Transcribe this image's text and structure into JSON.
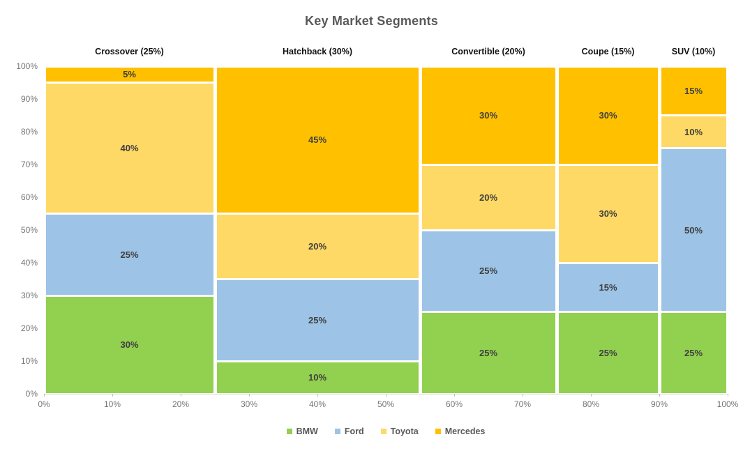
{
  "chart_data": {
    "type": "mosaic",
    "title": "Key Market Segments",
    "x_axis_unit": "%",
    "y_axis_unit": "%",
    "xlim": [
      0,
      100
    ],
    "ylim": [
      0,
      100
    ],
    "x_tick_labels": [
      "0%",
      "10%",
      "20%",
      "30%",
      "40%",
      "50%",
      "60%",
      "70%",
      "80%",
      "90%",
      "100%"
    ],
    "y_tick_labels": [
      "0%",
      "10%",
      "20%",
      "30%",
      "40%",
      "50%",
      "60%",
      "70%",
      "80%",
      "90%",
      "100%"
    ],
    "legend_position": "bottom",
    "stack_order_bottom_to_top": [
      "BMW",
      "Ford",
      "Toyota",
      "Mercedes"
    ],
    "series_colors": {
      "BMW": "#92D050",
      "Ford": "#9DC3E6",
      "Toyota": "#FFD966",
      "Mercedes": "#FFC000"
    },
    "categories": [
      {
        "label": "Crossover (25%)",
        "width_pct": 25,
        "values": {
          "BMW": 30,
          "Ford": 25,
          "Toyota": 40,
          "Mercedes": 5
        },
        "data_labels": {
          "BMW": "30%",
          "Ford": "25%",
          "Toyota": "40%",
          "Mercedes": "5%"
        }
      },
      {
        "label": "Hatchback (30%)",
        "width_pct": 30,
        "values": {
          "BMW": 10,
          "Ford": 25,
          "Toyota": 20,
          "Mercedes": 45
        },
        "data_labels": {
          "BMW": "10%",
          "Ford": "25%",
          "Toyota": "20%",
          "Mercedes": "45%"
        }
      },
      {
        "label": "Convertible (20%)",
        "width_pct": 20,
        "values": {
          "BMW": 25,
          "Ford": 25,
          "Toyota": 20,
          "Mercedes": 30
        },
        "data_labels": {
          "BMW": "25%",
          "Ford": "25%",
          "Toyota": "20%",
          "Mercedes": "30%"
        }
      },
      {
        "label": "Coupe (15%)",
        "width_pct": 15,
        "values": {
          "BMW": 25,
          "Ford": 15,
          "Toyota": 30,
          "Mercedes": 30
        },
        "data_labels": {
          "BMW": "25%",
          "Ford": "15%",
          "Toyota": "30%",
          "Mercedes": "30%"
        }
      },
      {
        "label": "SUV (10%)",
        "width_pct": 10,
        "values": {
          "BMW": 25,
          "Ford": 50,
          "Toyota": 10,
          "Mercedes": 15
        },
        "data_labels": {
          "BMW": "25%",
          "Ford": "50%",
          "Toyota": "10%",
          "Mercedes": "15%"
        }
      }
    ],
    "legend": [
      {
        "label": "BMW",
        "color": "#92D050"
      },
      {
        "label": "Ford",
        "color": "#9DC3E6"
      },
      {
        "label": "Toyota",
        "color": "#FFD966"
      },
      {
        "label": "Mercedes",
        "color": "#FFC000"
      }
    ]
  },
  "style": {
    "title_color": "#595959",
    "header_color": "#111111",
    "axis_label_color": "#757575",
    "axis_line_color": "#D6D6D6",
    "tick_color": "#BFBFBF",
    "segment_label_color": "#3F3F3F",
    "background": "#FFFFFF"
  }
}
